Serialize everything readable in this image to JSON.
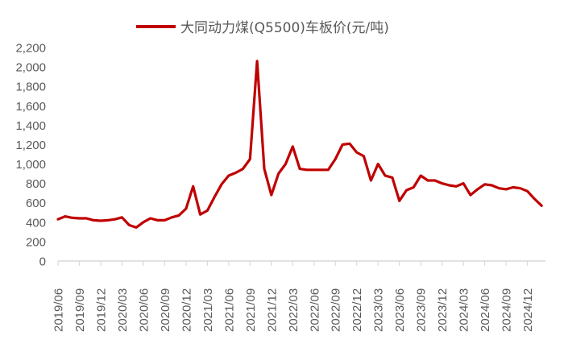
{
  "chart_data": {
    "type": "line",
    "title": "",
    "legend": {
      "position": "top",
      "entries": [
        "大同动力煤(Q5500)车板价(元/吨)"
      ]
    },
    "xlabel": "",
    "ylabel": "",
    "ylim": [
      0,
      2200
    ],
    "yticks": [
      0,
      200,
      400,
      600,
      800,
      1000,
      1200,
      1400,
      1600,
      1800,
      2000,
      2200
    ],
    "ytick_labels": [
      "0",
      "200",
      "400",
      "600",
      "800",
      "1,000",
      "1,200",
      "1,400",
      "1,600",
      "1,800",
      "2,000",
      "2,200"
    ],
    "xtick_labels": [
      "2019/06",
      "2019/09",
      "2019/12",
      "2020/03",
      "2020/06",
      "2020/09",
      "2020/12",
      "2021/03",
      "2021/06",
      "2021/09",
      "2021/12",
      "2022/03",
      "2022/06",
      "2022/09",
      "2022/12",
      "2023/03",
      "2023/06",
      "2023/09",
      "2023/12",
      "2024/03",
      "2024/06",
      "2024/09",
      "2024/12"
    ],
    "grid": false,
    "line_color": "#C00000",
    "series": [
      {
        "name": "大同动力煤(Q5500)车板价(元/吨)",
        "x": [
          "2019/06",
          "2019/07",
          "2019/08",
          "2019/09",
          "2019/10",
          "2019/11",
          "2019/12",
          "2020/01",
          "2020/02",
          "2020/03",
          "2020/04",
          "2020/05",
          "2020/06",
          "2020/07",
          "2020/08",
          "2020/09",
          "2020/10",
          "2020/11",
          "2020/12",
          "2021/01",
          "2021/02",
          "2021/03",
          "2021/04",
          "2021/05",
          "2021/06",
          "2021/07",
          "2021/08",
          "2021/09",
          "2021/10",
          "2021/11",
          "2021/12",
          "2022/01",
          "2022/02",
          "2022/03",
          "2022/04",
          "2022/05",
          "2022/06",
          "2022/07",
          "2022/08",
          "2022/09",
          "2022/10",
          "2022/11",
          "2022/12",
          "2023/01",
          "2023/02",
          "2023/03",
          "2023/04",
          "2023/05",
          "2023/06",
          "2023/07",
          "2023/08",
          "2023/09",
          "2023/10",
          "2023/11",
          "2023/12",
          "2024/01",
          "2024/02",
          "2024/03",
          "2024/04",
          "2024/05",
          "2024/06",
          "2024/07",
          "2024/08",
          "2024/09",
          "2024/10",
          "2024/11",
          "2024/12",
          "2025/01",
          "2025/02"
        ],
        "values": [
          430,
          460,
          445,
          440,
          440,
          420,
          415,
          420,
          430,
          450,
          370,
          345,
          400,
          440,
          420,
          420,
          450,
          470,
          540,
          770,
          480,
          520,
          660,
          790,
          880,
          910,
          950,
          1050,
          2060,
          950,
          680,
          900,
          1000,
          1180,
          950,
          940,
          940,
          940,
          940,
          1050,
          1200,
          1210,
          1120,
          1080,
          830,
          1000,
          880,
          860,
          620,
          730,
          760,
          880,
          830,
          830,
          800,
          780,
          770,
          800,
          680,
          740,
          790,
          780,
          750,
          740,
          760,
          750,
          720,
          640,
          570
        ]
      }
    ]
  }
}
